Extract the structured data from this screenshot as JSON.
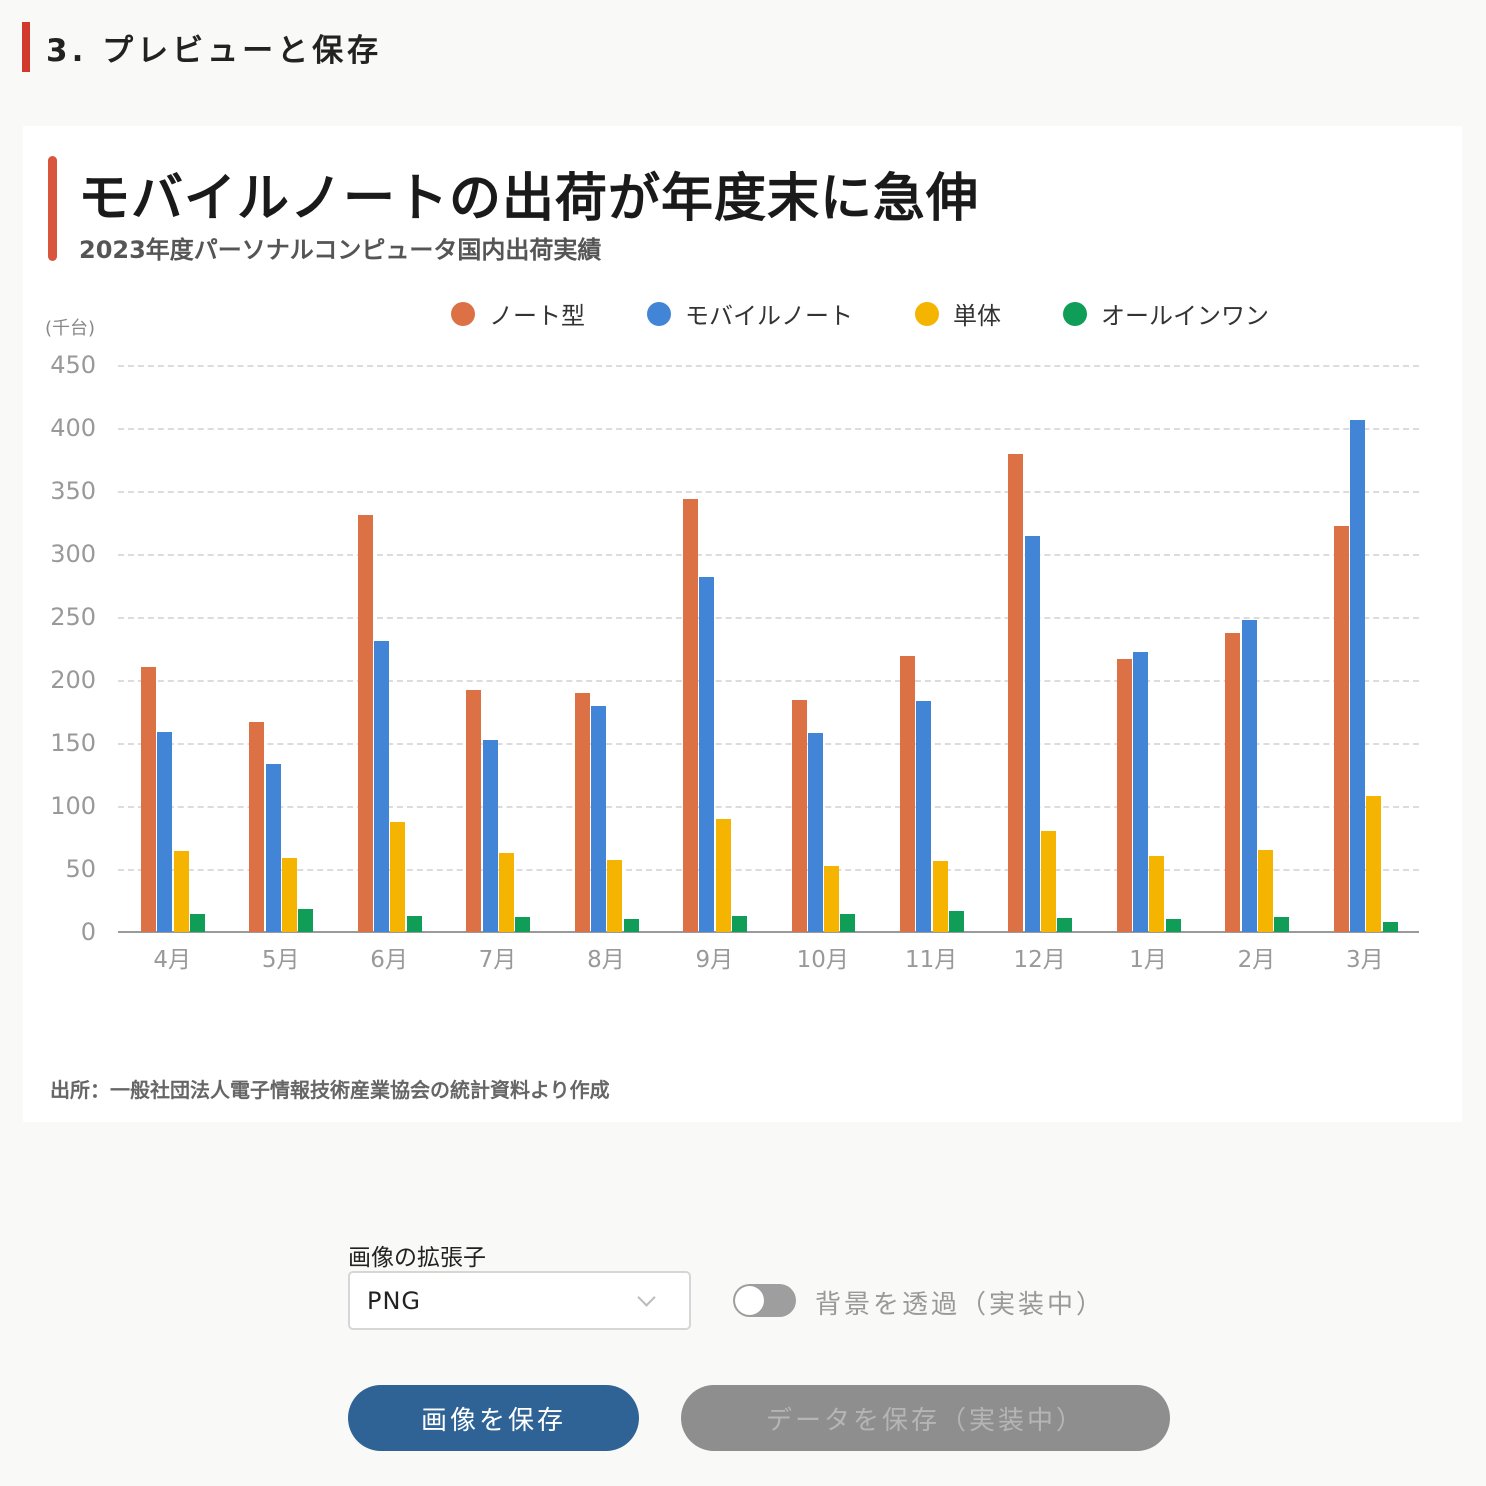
{
  "section": {
    "heading": "3. プレビューと保存"
  },
  "chart_card": {
    "title": "モバイルノートの出荷が年度末に急伸",
    "subtitle": "2023年度パーソナルコンピュータ国内出荷実績",
    "unit": "(千台)",
    "source": "出所：一般社団法人電子情報技術産業協会の統計資料より作成"
  },
  "chart_data": {
    "type": "bar",
    "title": "モバイルノートの出荷が年度末に急伸",
    "subtitle": "2023年度パーソナルコンピュータ国内出荷実績",
    "xlabel": "",
    "ylabel": "(千台)",
    "ylim": [
      0,
      450
    ],
    "yticks": [
      0,
      50,
      100,
      150,
      200,
      250,
      300,
      350,
      400,
      450
    ],
    "grid": true,
    "legend_position": "top-right",
    "categories": [
      "4月",
      "5月",
      "6月",
      "7月",
      "8月",
      "9月",
      "10月",
      "11月",
      "12月",
      "1月",
      "2月",
      "3月"
    ],
    "series": [
      {
        "name": "ノート型",
        "color": "#dd7146",
        "values": [
          210,
          167,
          331,
          192,
          190,
          344,
          184,
          219,
          379,
          217,
          237,
          322
        ]
      },
      {
        "name": "モバイルノート",
        "color": "#4285d6",
        "values": [
          159,
          133,
          231,
          152,
          179,
          282,
          158,
          183,
          314,
          222,
          248,
          406
        ]
      },
      {
        "name": "単体",
        "color": "#f5b400",
        "values": [
          64,
          59,
          87,
          63,
          57,
          90,
          52,
          56,
          80,
          60,
          65,
          108
        ]
      },
      {
        "name": "オールインワン",
        "color": "#0f9d58",
        "values": [
          14,
          18,
          13,
          12,
          10,
          13,
          14,
          17,
          11,
          10,
          12,
          8
        ]
      }
    ],
    "source": "出所：一般社団法人電子情報技術産業協会の統計資料より作成"
  },
  "controls": {
    "extension_label": "画像の拡張子",
    "extension_value": "PNG",
    "transparent_toggle_label": "背景を透過（実装中）",
    "transparent_toggle_on": false,
    "save_image_button": "画像を保存",
    "save_data_button": "データを保存（実装中）"
  },
  "colors": {
    "accent_red": "#d0392b",
    "primary_button": "#2f6295",
    "disabled_button": "#8e8e8e"
  }
}
